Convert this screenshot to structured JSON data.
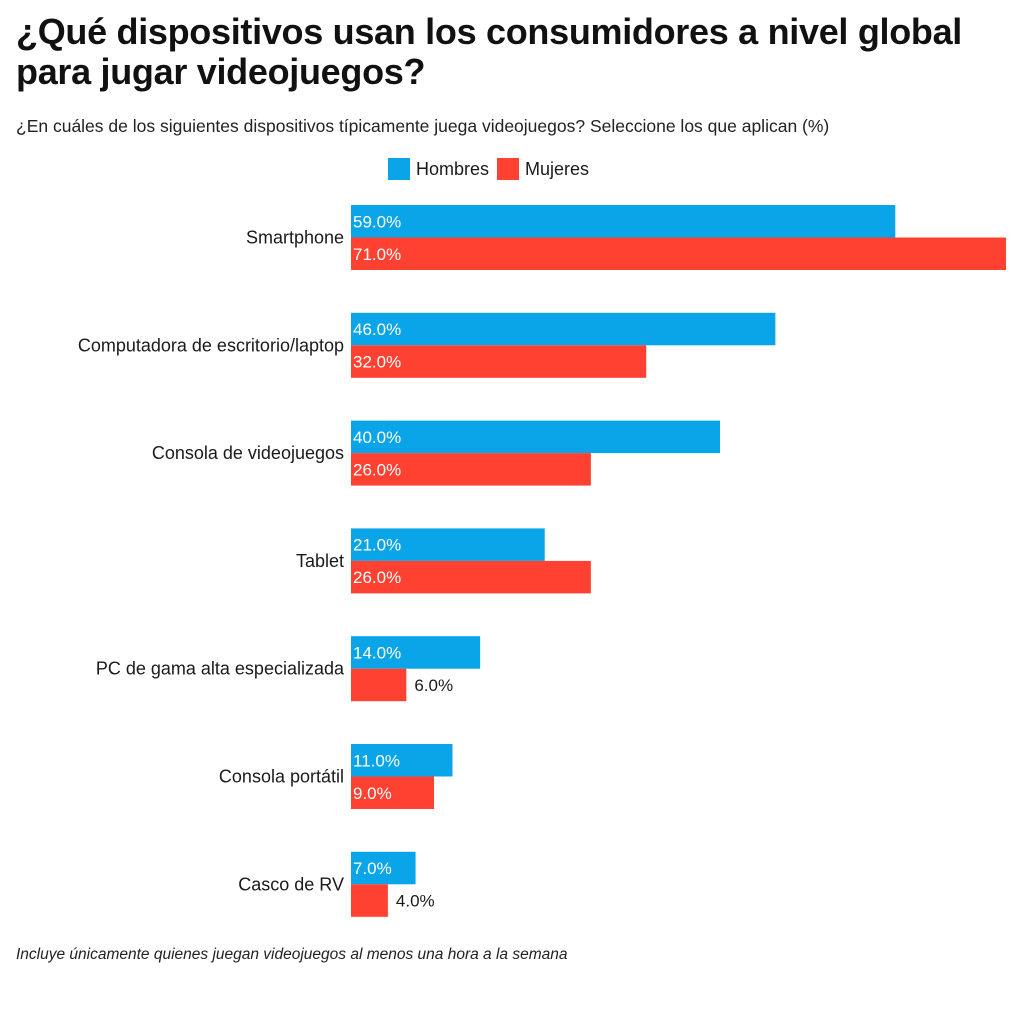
{
  "chart_data": {
    "type": "bar",
    "orientation": "horizontal",
    "title": "¿Qué dispositivos usan los consumidores a nivel global para jugar videojuegos?",
    "subtitle": "¿En cuáles de los siguientes dispositivos típicamente juega videojuegos? Seleccione los que aplican (%)",
    "categories": [
      "Smartphone",
      "Computadora de escritorio/laptop",
      "Consola de videojuegos",
      "Tablet",
      "PC de gama alta especializada",
      "Consola portátil",
      "Casco de RV"
    ],
    "series": [
      {
        "name": "Hombres",
        "color": "#0aa5e9",
        "values": [
          59.0,
          46.0,
          40.0,
          21.0,
          14.0,
          11.0,
          7.0
        ]
      },
      {
        "name": "Mujeres",
        "color": "#ff4131",
        "values": [
          71.0,
          32.0,
          26.0,
          26.0,
          6.0,
          9.0,
          4.0
        ]
      }
    ],
    "value_suffix": "%",
    "xlim": [
      0,
      71
    ],
    "grid": false,
    "legend_position": "top",
    "footnote": "Incluye únicamente quienes juegan videojuegos al menos una hora a la semana"
  }
}
